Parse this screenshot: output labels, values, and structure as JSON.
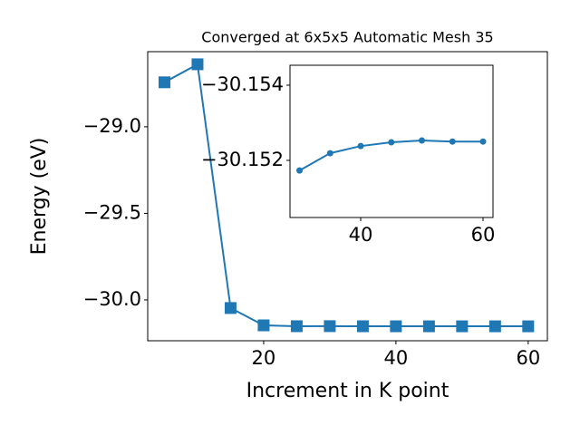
{
  "chart_data": [
    {
      "type": "line",
      "title": "Converged at 6x5x5 Automatic Mesh 35",
      "x_label": "Increment in K point",
      "y_label": "Energy (eV)",
      "x": [
        5,
        10,
        15,
        20,
        25,
        30,
        35,
        40,
        45,
        50,
        55,
        60
      ],
      "series": [
        {
          "color": "#1f77b4",
          "marker": "square",
          "values": [
            -28.743,
            -28.639,
            -30.047,
            -30.147,
            -30.152,
            -30.1517,
            -30.1522,
            -30.1524,
            -30.1525,
            -30.1525,
            -30.1525,
            -30.1525
          ]
        }
      ],
      "xlim": [
        2.47,
        62.9
      ],
      "ylim": [
        -30.236,
        -28.566
      ],
      "xticks": [
        20,
        40,
        60
      ],
      "yticks": [
        {
          "value": -29.0,
          "label": "−29.0"
        },
        {
          "value": -29.5,
          "label": "−29.5"
        },
        {
          "value": -30.0,
          "label": "−30.0"
        }
      ]
    },
    {
      "type": "line",
      "x": [
        30,
        35,
        40,
        45,
        50,
        55,
        60
      ],
      "series": [
        {
          "color": "#1f77b4",
          "marker": "circle",
          "values": [
            -30.15173,
            -30.15219,
            -30.15238,
            -30.15248,
            -30.15253,
            -30.1525,
            -30.1525
          ]
        }
      ],
      "xlim": [
        28.44,
        61.63
      ],
      "ylim": [
        -30.15048,
        -30.15453
      ],
      "xticks": [
        40,
        60
      ],
      "yticks": [
        {
          "value": -30.154,
          "label": "−30.154"
        },
        {
          "value": -30.152,
          "label": "−30.152"
        }
      ]
    }
  ]
}
